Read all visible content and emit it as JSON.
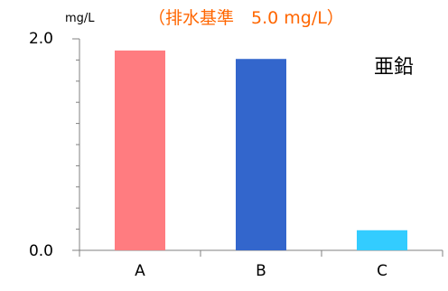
{
  "chart_data": {
    "type": "bar",
    "unit": "mg/L",
    "note": "（排水基準　5.0 mg/L）",
    "series_label": "亜鉛",
    "categories": [
      "A",
      "B",
      "C"
    ],
    "values": [
      1.89,
      1.81,
      0.19
    ],
    "colors": [
      "#ff7c80",
      "#3366cc",
      "#33ccff"
    ],
    "ylim": [
      0,
      2.0
    ],
    "y_tick_labels": [
      "0.0",
      "2.0"
    ],
    "grid": false
  }
}
